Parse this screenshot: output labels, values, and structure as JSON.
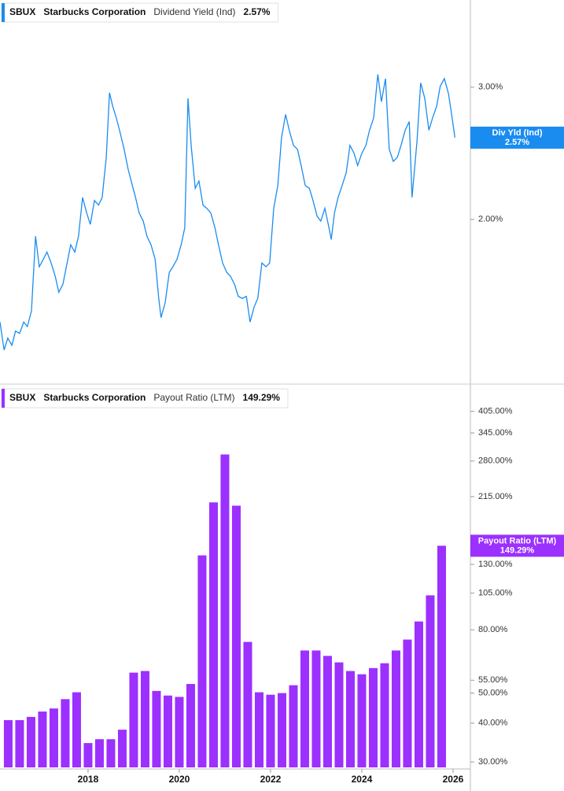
{
  "chart_data": [
    {
      "type": "line",
      "color": "#1a8cf0",
      "log_scale": true,
      "legend": {
        "ticker": "SBUX",
        "company": "Starbucks Corporation",
        "metric": "Dividend Yield (Ind)",
        "value": "2.57%"
      },
      "badge": {
        "label": "Div Yld (Ind)",
        "value": "2.57%"
      },
      "ylim": [
        1.21,
        3.92
      ],
      "yticks": [
        {
          "value": 3,
          "label": "3.00%"
        },
        {
          "value": 2,
          "label": "2.00%"
        }
      ],
      "xlim": [
        2016.07,
        2026.38
      ],
      "x": [
        2016.07,
        2016.16,
        2016.24,
        2016.33,
        2016.41,
        2016.5,
        2016.59,
        2016.67,
        2016.76,
        2016.85,
        2016.93,
        2017.02,
        2017.1,
        2017.19,
        2017.28,
        2017.36,
        2017.45,
        2017.54,
        2017.62,
        2017.71,
        2017.79,
        2017.88,
        2017.97,
        2018.05,
        2018.14,
        2018.23,
        2018.31,
        2018.4,
        2018.47,
        2018.54,
        2018.62,
        2018.71,
        2018.79,
        2018.88,
        2018.97,
        2019.04,
        2019.12,
        2019.21,
        2019.29,
        2019.38,
        2019.47,
        2019.55,
        2019.6,
        2019.69,
        2019.78,
        2019.86,
        2019.95,
        2020.04,
        2020.12,
        2020.19,
        2020.26,
        2020.35,
        2020.43,
        2020.52,
        2020.6,
        2020.69,
        2020.78,
        2020.86,
        2020.95,
        2021.04,
        2021.12,
        2021.21,
        2021.29,
        2021.38,
        2021.47,
        2021.55,
        2021.64,
        2021.72,
        2021.81,
        2021.9,
        2021.98,
        2022.07,
        2022.16,
        2022.24,
        2022.33,
        2022.41,
        2022.5,
        2022.59,
        2022.67,
        2022.76,
        2022.85,
        2022.93,
        2023.02,
        2023.1,
        2023.19,
        2023.28,
        2023.33,
        2023.4,
        2023.48,
        2023.57,
        2023.66,
        2023.74,
        2023.83,
        2023.91,
        2024.0,
        2024.09,
        2024.17,
        2024.26,
        2024.35,
        2024.43,
        2024.52,
        2024.6,
        2024.69,
        2024.78,
        2024.86,
        2024.95,
        2025.04,
        2025.1,
        2025.21,
        2025.29,
        2025.38,
        2025.47,
        2025.55,
        2025.64,
        2025.72,
        2025.81,
        2025.9,
        2025.98,
        2026.04
      ],
      "values": [
        1.46,
        1.34,
        1.39,
        1.36,
        1.42,
        1.41,
        1.46,
        1.44,
        1.51,
        1.9,
        1.73,
        1.77,
        1.81,
        1.75,
        1.68,
        1.6,
        1.64,
        1.75,
        1.85,
        1.81,
        1.9,
        2.14,
        2.04,
        1.97,
        2.12,
        2.09,
        2.14,
        2.42,
        2.95,
        2.83,
        2.73,
        2.6,
        2.48,
        2.33,
        2.22,
        2.14,
        2.04,
        1.99,
        1.9,
        1.85,
        1.77,
        1.57,
        1.48,
        1.55,
        1.7,
        1.73,
        1.77,
        1.85,
        1.95,
        2.9,
        2.51,
        2.2,
        2.25,
        2.09,
        2.07,
        2.04,
        1.95,
        1.85,
        1.75,
        1.7,
        1.68,
        1.64,
        1.58,
        1.57,
        1.58,
        1.46,
        1.53,
        1.57,
        1.75,
        1.73,
        1.75,
        2.07,
        2.22,
        2.57,
        2.76,
        2.63,
        2.51,
        2.48,
        2.36,
        2.22,
        2.2,
        2.12,
        2.02,
        1.99,
        2.07,
        1.95,
        1.88,
        2.04,
        2.14,
        2.22,
        2.31,
        2.51,
        2.45,
        2.36,
        2.45,
        2.51,
        2.63,
        2.73,
        3.12,
        2.87,
        3.08,
        2.48,
        2.39,
        2.42,
        2.51,
        2.63,
        2.7,
        2.14,
        2.54,
        3.04,
        2.9,
        2.63,
        2.73,
        2.83,
        3.01,
        3.08,
        2.94,
        2.73,
        2.57
      ]
    },
    {
      "type": "bar",
      "color": "#9b30ff",
      "log_scale": true,
      "legend": {
        "ticker": "SBUX",
        "company": "Starbucks Corporation",
        "metric": "Payout Ratio (LTM)",
        "value": "149.29%"
      },
      "badge": {
        "label": "Payout Ratio (LTM)",
        "value": "149.29%"
      },
      "ylim": [
        28.8,
        490
      ],
      "yticks": [
        {
          "value": 405,
          "label": "405.00%"
        },
        {
          "value": 345,
          "label": "345.00%"
        },
        {
          "value": 280,
          "label": "280.00%"
        },
        {
          "value": 215,
          "label": "215.00%"
        },
        {
          "value": 130,
          "label": "130.00%"
        },
        {
          "value": 105,
          "label": "105.00%"
        },
        {
          "value": 80,
          "label": "80.00%"
        },
        {
          "value": 55,
          "label": "55.00%"
        },
        {
          "value": 50,
          "label": "50.00%"
        },
        {
          "value": 40,
          "label": "40.00%"
        },
        {
          "value": 30,
          "label": "30.00%"
        }
      ],
      "xlim": [
        2016.07,
        2026.38
      ],
      "xticks": [
        2018,
        2020,
        2022,
        2024,
        2026
      ],
      "x": [
        2016.25,
        2016.5,
        2016.75,
        2017,
        2017.25,
        2017.5,
        2017.75,
        2018,
        2018.25,
        2018.5,
        2018.75,
        2019,
        2019.25,
        2019.5,
        2019.75,
        2020,
        2020.25,
        2020.5,
        2020.75,
        2021,
        2021.25,
        2021.5,
        2021.75,
        2022,
        2022.25,
        2022.5,
        2022.75,
        2023,
        2023.25,
        2023.5,
        2023.75,
        2024,
        2024.25,
        2024.5,
        2024.75,
        2025,
        2025.25,
        2025.5,
        2025.75
      ],
      "values": [
        40.9,
        40.9,
        41.9,
        43.6,
        44.6,
        47.8,
        50.3,
        34.5,
        35.5,
        35.5,
        38.1,
        58.2,
        58.9,
        50.8,
        49.1,
        48.6,
        53.5,
        139,
        206,
        294,
        201,
        73.1,
        50.3,
        49.4,
        50.0,
        53.0,
        68.6,
        68.6,
        65.9,
        62.8,
        58.9,
        57.5,
        60.2,
        62.4,
        68.6,
        74.4,
        85.1,
        103.3,
        149.29
      ]
    }
  ]
}
